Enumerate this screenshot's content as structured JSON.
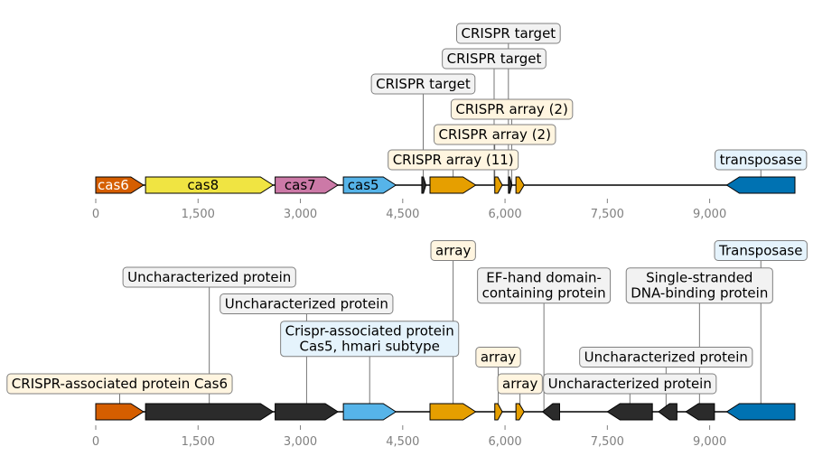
{
  "axis": {
    "min": 0,
    "max": 10250,
    "ticks": [
      {
        "value": 0,
        "label": "0"
      },
      {
        "value": 1500,
        "label": "1,500"
      },
      {
        "value": 3000,
        "label": "3,000"
      },
      {
        "value": 4500,
        "label": "4,500"
      },
      {
        "value": 6000,
        "label": "6,000"
      },
      {
        "value": 7500,
        "label": "7,500"
      },
      {
        "value": 9000,
        "label": "9,000"
      }
    ]
  },
  "tracks": [
    {
      "genes": [
        {
          "start": 0,
          "end": 700,
          "strand": 1,
          "color": "#d55e00",
          "label": "cas6",
          "label_color": "#ffffff"
        },
        {
          "start": 730,
          "end": 2600,
          "strand": 1,
          "color": "#f0e442",
          "label": "cas8",
          "label_color": "#000000"
        },
        {
          "start": 2630,
          "end": 3550,
          "strand": 1,
          "color": "#cc79a7",
          "label": "cas7",
          "label_color": "#000000"
        },
        {
          "start": 3630,
          "end": 4400,
          "strand": 1,
          "color": "#56b4e9",
          "label": "cas5",
          "label_color": "#000000"
        },
        {
          "start": 4780,
          "end": 4840,
          "strand": 1,
          "color": "#2b2b2b",
          "label": ""
        },
        {
          "start": 4900,
          "end": 5570,
          "strand": 1,
          "color": "#e69f00",
          "label": ""
        },
        {
          "start": 5850,
          "end": 5960,
          "strand": 1,
          "color": "#e69f00",
          "label": ""
        },
        {
          "start": 6050,
          "end": 6100,
          "strand": 1,
          "color": "#2b2b2b",
          "label": ""
        },
        {
          "start": 6160,
          "end": 6280,
          "strand": 1,
          "color": "#e69f00",
          "label": ""
        },
        {
          "start": 9250,
          "end": 10250,
          "strand": -1,
          "color": "#0072b2",
          "label": ""
        }
      ],
      "annotations": [
        {
          "text": [
            "CRISPR target"
          ],
          "pos": 6050,
          "level": 6,
          "bg": "#f2f2f2"
        },
        {
          "text": [
            "CRISPR target"
          ],
          "pos": 5840,
          "level": 5,
          "bg": "#f2f2f2"
        },
        {
          "text": [
            "CRISPR target"
          ],
          "pos": 4800,
          "level": 4,
          "bg": "#f2f2f2"
        },
        {
          "text": [
            "CRISPR array (2)"
          ],
          "pos": 6100,
          "level": 3,
          "bg": "#fff5e0"
        },
        {
          "text": [
            "CRISPR array (2)"
          ],
          "pos": 5850,
          "level": 2,
          "bg": "#fff5e0"
        },
        {
          "text": [
            "CRISPR array (11)"
          ],
          "pos": 5240,
          "level": 1,
          "bg": "#fff5e0"
        },
        {
          "text": [
            "transposase"
          ],
          "pos": 9750,
          "level": 1,
          "bg": "#e5f3fc"
        }
      ]
    },
    {
      "genes": [
        {
          "start": 0,
          "end": 700,
          "strand": 1,
          "color": "#d55e00",
          "label": ""
        },
        {
          "start": 730,
          "end": 2600,
          "strand": 1,
          "color": "#2b2b2b",
          "label": ""
        },
        {
          "start": 2630,
          "end": 3550,
          "strand": 1,
          "color": "#2b2b2b",
          "label": ""
        },
        {
          "start": 3630,
          "end": 4400,
          "strand": 1,
          "color": "#56b4e9",
          "label": ""
        },
        {
          "start": 4900,
          "end": 5570,
          "strand": 1,
          "color": "#e69f00",
          "label": ""
        },
        {
          "start": 5850,
          "end": 5960,
          "strand": 1,
          "color": "#e69f00",
          "label": ""
        },
        {
          "start": 6160,
          "end": 6280,
          "strand": 1,
          "color": "#e69f00",
          "label": ""
        },
        {
          "start": 6550,
          "end": 6800,
          "strand": -1,
          "color": "#2b2b2b",
          "label": ""
        },
        {
          "start": 7500,
          "end": 8160,
          "strand": -1,
          "color": "#2b2b2b",
          "label": ""
        },
        {
          "start": 8250,
          "end": 8520,
          "strand": -1,
          "color": "#2b2b2b",
          "label": ""
        },
        {
          "start": 8650,
          "end": 9070,
          "strand": -1,
          "color": "#2b2b2b",
          "label": ""
        },
        {
          "start": 9250,
          "end": 10250,
          "strand": -1,
          "color": "#0072b2",
          "label": ""
        }
      ],
      "annotations": [
        {
          "text": [
            "Transposase"
          ],
          "pos": 9750,
          "level": 6,
          "bg": "#e5f3fc"
        },
        {
          "text": [
            "array"
          ],
          "pos": 5240,
          "level": 6,
          "bg": "#fff5e0"
        },
        {
          "text": [
            "Uncharacterized protein"
          ],
          "pos": 1665,
          "level": 5,
          "bg": "#f2f2f2"
        },
        {
          "text": [
            "EF-hand domain-",
            "containing protein"
          ],
          "pos": 6570,
          "level": 4.4,
          "bg": "#f2f2f2"
        },
        {
          "text": [
            "Single-stranded",
            "DNA-binding protein"
          ],
          "pos": 8850,
          "level": 4.4,
          "bg": "#f2f2f2"
        },
        {
          "text": [
            "Uncharacterized protein"
          ],
          "pos": 3090,
          "level": 4,
          "bg": "#f2f2f2"
        },
        {
          "text": [
            "Crispr-associated protein",
            "Cas5, hmari subtype"
          ],
          "pos": 4015,
          "level": 2.4,
          "bg": "#e5f3fc"
        },
        {
          "text": [
            "array"
          ],
          "pos": 5900,
          "level": 2,
          "bg": "#fff5e0"
        },
        {
          "text": [
            "Uncharacterized protein"
          ],
          "pos": 8360,
          "level": 2,
          "bg": "#f2f2f2"
        },
        {
          "text": [
            "CRISPR-associated protein Cas6"
          ],
          "pos": 350,
          "level": 1,
          "bg": "#fff5e0"
        },
        {
          "text": [
            "array"
          ],
          "pos": 6220,
          "level": 1,
          "bg": "#fff5e0"
        },
        {
          "text": [
            "Uncharacterized protein"
          ],
          "pos": 7830,
          "level": 1,
          "bg": "#f2f2f2"
        }
      ]
    }
  ]
}
